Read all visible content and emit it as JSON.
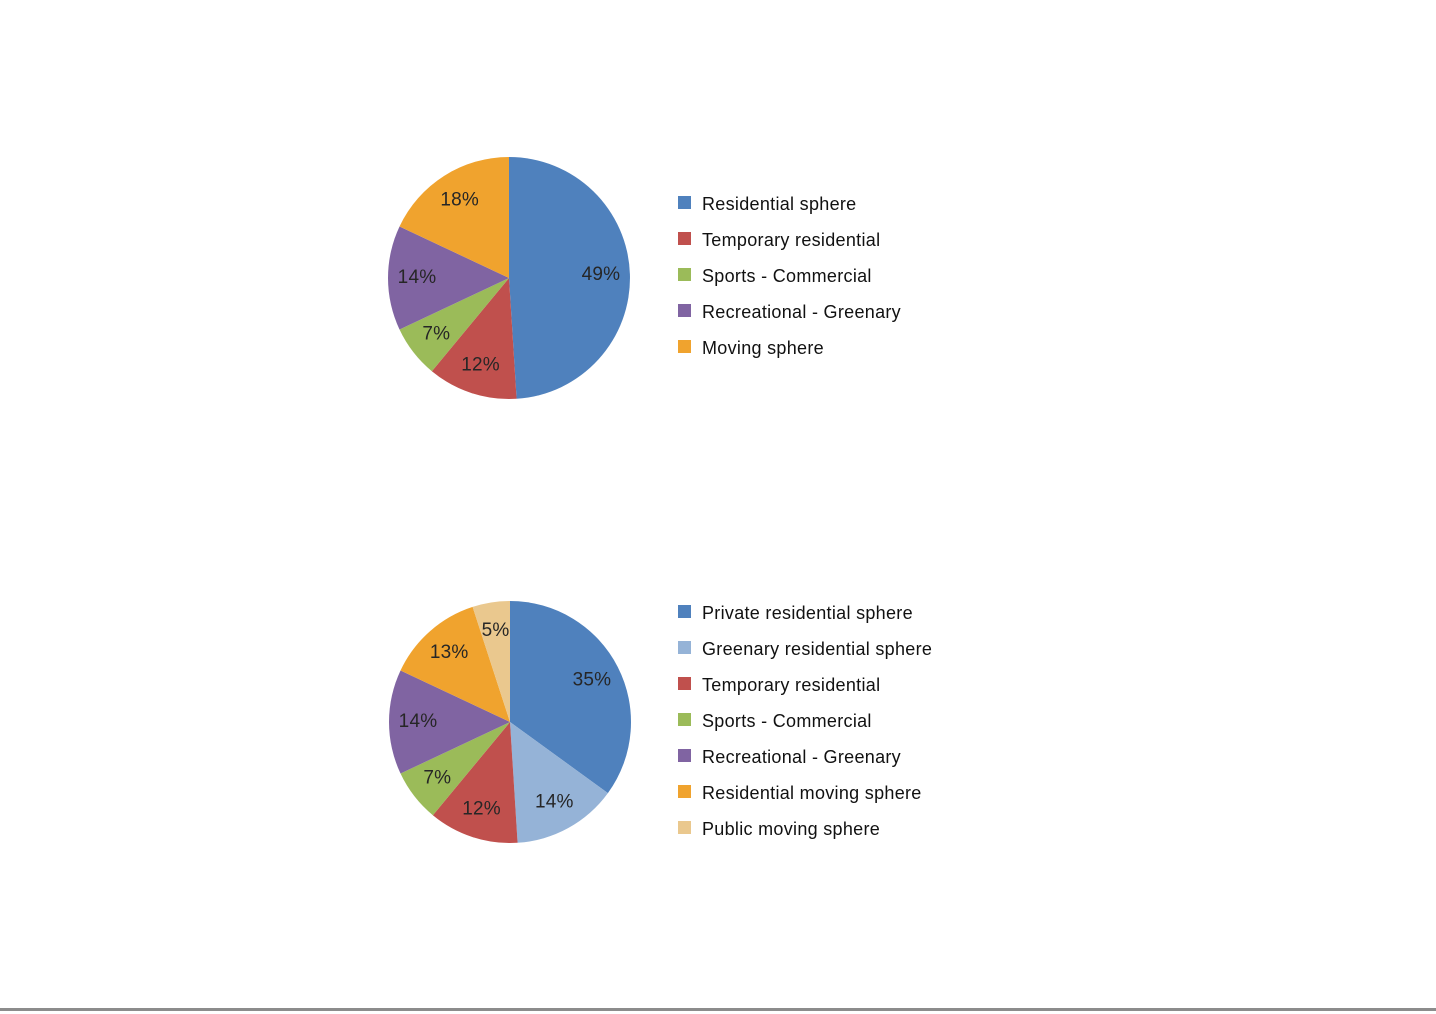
{
  "page": {
    "background": "#ffffff",
    "bottom_rule_color": "#8c8c8c"
  },
  "chart_data": [
    {
      "type": "pie",
      "title": "",
      "categories": [
        "Residential sphere",
        "Temporary residential",
        "Sports - Commercial",
        "Recreational - Greenary",
        "Moving sphere"
      ],
      "values": [
        49,
        12,
        7,
        14,
        18
      ],
      "labels": [
        "49%",
        "12%",
        "7%",
        "14%",
        "18%"
      ],
      "colors": [
        "#4F81BD",
        "#C0504D",
        "#9BBB59",
        "#8064A2",
        "#F0A32E"
      ],
      "label_color": "#262626",
      "legend_text_color": "#111111",
      "legend_position": "right",
      "start_angle_deg": 0,
      "direction": "clockwise",
      "legend_entries": [
        "Residential sphere",
        "Temporary residential",
        "Sports - Commercial",
        "Recreational - Greenary",
        "Moving sphere"
      ]
    },
    {
      "type": "pie",
      "title": "",
      "categories": [
        "Private residential sphere",
        "Greenary residential sphere",
        "Temporary residential",
        "Sports - Commercial",
        "Recreational - Greenary",
        "Residential moving sphere",
        "Public moving sphere"
      ],
      "values": [
        35,
        14,
        12,
        7,
        14,
        13,
        5
      ],
      "labels": [
        "35%",
        "14%",
        "12%",
        "7%",
        "14%",
        "13%",
        "5%"
      ],
      "colors": [
        "#4F81BD",
        "#95B3D7",
        "#C0504D",
        "#9BBB59",
        "#8064A2",
        "#F0A32E",
        "#EAC88E"
      ],
      "label_color": "#262626",
      "legend_text_color": "#111111",
      "legend_position": "right",
      "start_angle_deg": 0,
      "direction": "clockwise",
      "legend_entries": [
        "Private residential sphere",
        "Greenary residential sphere",
        "Temporary residential",
        "Sports - Commercial",
        "Recreational - Greenary",
        "Residential moving sphere",
        "Public moving sphere"
      ]
    }
  ]
}
